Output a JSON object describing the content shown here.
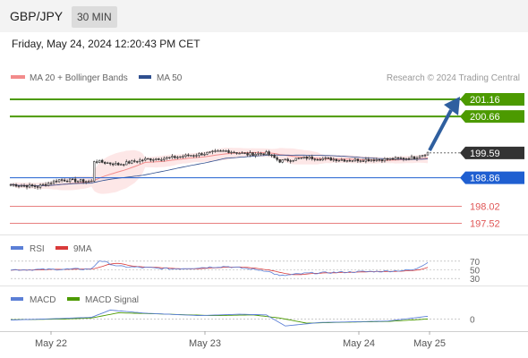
{
  "header": {
    "symbol": "GBP/JPY",
    "timeframe": "30 MIN",
    "datetime": "Friday, May 24, 2024 12:20:43 PM CET"
  },
  "legend": {
    "ma20_label": "MA 20 + Bollinger Bands",
    "ma50_label": "MA 50",
    "copyright": "Research © 2024 Trading Central",
    "rsi_label": "RSI",
    "rsi_ma_label": "9MA",
    "macd_label": "MACD",
    "macd_signal_label": "MACD Signal"
  },
  "colors": {
    "ma20": "#f28b8b",
    "ma50": "#2f4f8f",
    "bollinger_fill": "#fde3e3",
    "resistance": "#4c9a00",
    "pivot": "#1f5fd1",
    "support": "#e05656",
    "last_price_tag": "#333333",
    "arrow": "#2f5f9f",
    "rsi": "#5b7fd6",
    "rsi_ma": "#d93a3a",
    "macd": "#5b7fd6",
    "macd_signal": "#4c9a00"
  },
  "chart_data": {
    "type": "candlestick",
    "symbol": "GBP/JPY",
    "x_ticks": [
      "May 22",
      "May 23",
      "May 24",
      "May 25"
    ],
    "y_range": [
      197.3,
      201.45
    ],
    "levels": [
      {
        "value": 201.16,
        "label": "201.16",
        "kind": "resistance"
      },
      {
        "value": 200.66,
        "label": "200.66",
        "kind": "resistance"
      },
      {
        "value": 199.59,
        "label": "199.59",
        "kind": "last"
      },
      {
        "value": 198.86,
        "label": "198.86",
        "kind": "pivot"
      },
      {
        "value": 198.02,
        "label": "198.02",
        "kind": "support"
      },
      {
        "value": 197.52,
        "label": "197.52",
        "kind": "support"
      }
    ],
    "anchors": [
      [
        0,
        198.66
      ],
      [
        10,
        198.6
      ],
      [
        18,
        198.8
      ],
      [
        30,
        198.75
      ],
      [
        31,
        199.35
      ],
      [
        40,
        199.25
      ],
      [
        50,
        199.4
      ],
      [
        60,
        199.45
      ],
      [
        70,
        199.55
      ],
      [
        80,
        199.65
      ],
      [
        88,
        199.55
      ],
      [
        95,
        199.58
      ],
      [
        100,
        199.35
      ],
      [
        110,
        199.45
      ],
      [
        125,
        199.38
      ],
      [
        140,
        199.4
      ],
      [
        150,
        199.45
      ],
      [
        155,
        199.6
      ]
    ],
    "forecast_target": 201.16,
    "rsi": {
      "levels": [
        70,
        50,
        30
      ],
      "range": [
        20,
        80
      ],
      "anchors": [
        [
          0,
          50
        ],
        [
          30,
          52
        ],
        [
          33,
          72
        ],
        [
          40,
          58
        ],
        [
          60,
          52
        ],
        [
          80,
          58
        ],
        [
          95,
          48
        ],
        [
          100,
          36
        ],
        [
          110,
          42
        ],
        [
          125,
          45
        ],
        [
          140,
          47
        ],
        [
          150,
          50
        ],
        [
          155,
          68
        ]
      ]
    },
    "macd": {
      "zero_label": "0",
      "range": [
        -0.3,
        0.35
      ],
      "macd_anchors": [
        [
          0,
          -0.03
        ],
        [
          20,
          0.02
        ],
        [
          30,
          0.05
        ],
        [
          37,
          0.26
        ],
        [
          50,
          0.17
        ],
        [
          70,
          0.1
        ],
        [
          85,
          0.14
        ],
        [
          95,
          0.12
        ],
        [
          102,
          -0.2
        ],
        [
          115,
          -0.1
        ],
        [
          140,
          -0.06
        ],
        [
          155,
          0.08
        ]
      ],
      "signal_anchors": [
        [
          0,
          -0.02
        ],
        [
          20,
          0.0
        ],
        [
          30,
          0.03
        ],
        [
          40,
          0.18
        ],
        [
          55,
          0.15
        ],
        [
          75,
          0.1
        ],
        [
          90,
          0.12
        ],
        [
          100,
          0.03
        ],
        [
          110,
          -0.12
        ],
        [
          125,
          -0.09
        ],
        [
          140,
          -0.07
        ],
        [
          155,
          0.0
        ]
      ]
    }
  }
}
